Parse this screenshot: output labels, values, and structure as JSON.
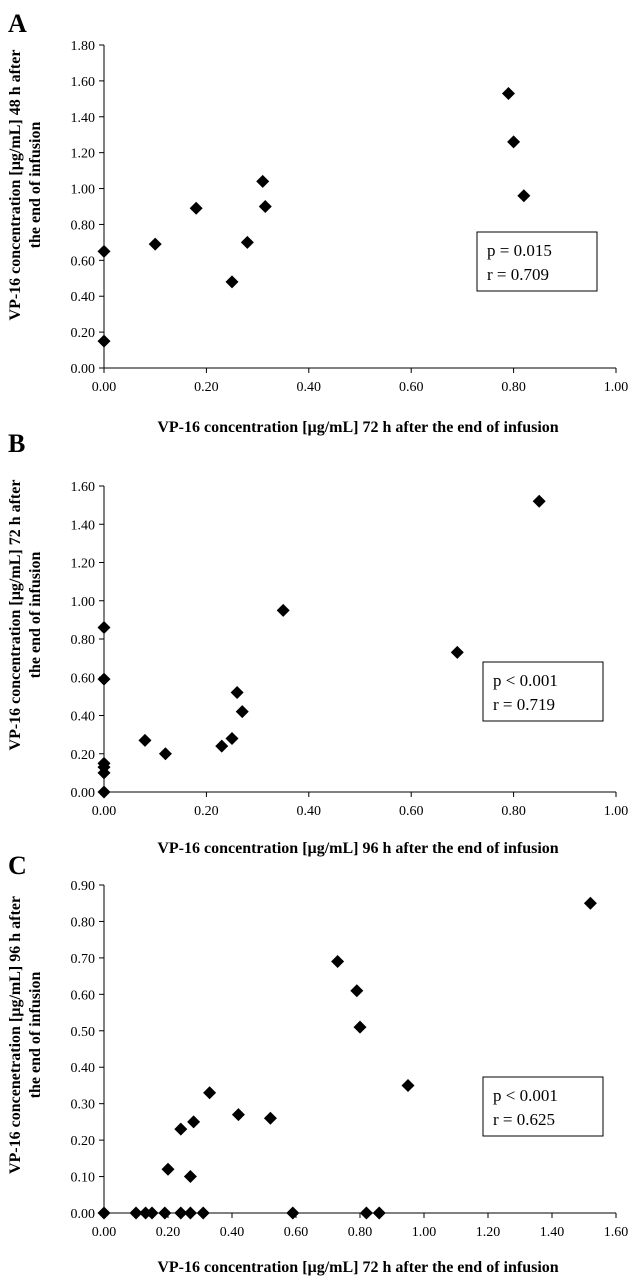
{
  "chart_data": [
    {
      "type": "scatter",
      "panel": "A",
      "xlabel": "VP-16 concentration [µg/mL] 72 h after the end of infusion",
      "ylabel_lines": [
        "VP-16 concentration [µg/mL] 48 h after",
        "the end of infusion"
      ],
      "xlim": [
        0,
        1.0
      ],
      "ylim": [
        0,
        1.8
      ],
      "xticks": [
        "0.00",
        "0.20",
        "0.40",
        "0.60",
        "0.80",
        "1.00"
      ],
      "yticks": [
        "0.00",
        "0.20",
        "0.40",
        "0.60",
        "0.80",
        "1.00",
        "1.20",
        "1.40",
        "1.60",
        "1.80"
      ],
      "stat_lines": [
        "p = 0.015",
        "r = 0.709"
      ],
      "marker": "diamond",
      "points": [
        {
          "x": 0.0,
          "y": 0.15
        },
        {
          "x": 0.0,
          "y": 0.65
        },
        {
          "x": 0.1,
          "y": 0.69
        },
        {
          "x": 0.18,
          "y": 0.89
        },
        {
          "x": 0.25,
          "y": 0.48
        },
        {
          "x": 0.28,
          "y": 0.7
        },
        {
          "x": 0.31,
          "y": 1.04
        },
        {
          "x": 0.315,
          "y": 0.9
        },
        {
          "x": 0.79,
          "y": 1.53
        },
        {
          "x": 0.8,
          "y": 1.26
        },
        {
          "x": 0.82,
          "y": 0.96
        }
      ]
    },
    {
      "type": "scatter",
      "panel": "B",
      "xlabel": "VP-16 concentration [µg/mL] 96 h after the end of infusion",
      "ylabel_lines": [
        "VP-16 concentration [µg/mL] 72 h after",
        "the end of infusion"
      ],
      "xlim": [
        0,
        1.0
      ],
      "ylim": [
        0,
        1.6
      ],
      "xticks": [
        "0.00",
        "0.20",
        "0.40",
        "0.60",
        "0.80",
        "1.00"
      ],
      "yticks": [
        "0.00",
        "0.20",
        "0.40",
        "0.60",
        "0.80",
        "1.00",
        "1.20",
        "1.40",
        "1.60"
      ],
      "stat_lines": [
        "p < 0.001",
        "r = 0.719"
      ],
      "marker": "diamond",
      "points": [
        {
          "x": 0.0,
          "y": 0.0
        },
        {
          "x": 0.0,
          "y": 0.1
        },
        {
          "x": 0.0,
          "y": 0.13
        },
        {
          "x": 0.0,
          "y": 0.15
        },
        {
          "x": 0.0,
          "y": 0.59
        },
        {
          "x": 0.0,
          "y": 0.86
        },
        {
          "x": 0.08,
          "y": 0.27
        },
        {
          "x": 0.12,
          "y": 0.2
        },
        {
          "x": 0.23,
          "y": 0.24
        },
        {
          "x": 0.25,
          "y": 0.28
        },
        {
          "x": 0.26,
          "y": 0.52
        },
        {
          "x": 0.27,
          "y": 0.42
        },
        {
          "x": 0.35,
          "y": 0.95
        },
        {
          "x": 0.69,
          "y": 0.73
        },
        {
          "x": 0.85,
          "y": 1.52
        }
      ]
    },
    {
      "type": "scatter",
      "panel": "C",
      "xlabel": "VP-16 concentration [µg/mL] 72 h after the end of infusion",
      "ylabel_lines": [
        "VP-16 concenetration [µg/mL] 96 h after",
        "the end of infusion"
      ],
      "xlim": [
        0,
        1.6
      ],
      "ylim": [
        0,
        0.9
      ],
      "xticks": [
        "0.00",
        "0.20",
        "0.40",
        "0.60",
        "0.80",
        "1.00",
        "1.20",
        "1.40",
        "1.60"
      ],
      "yticks": [
        "0.00",
        "0.10",
        "0.20",
        "0.30",
        "0.40",
        "0.50",
        "0.60",
        "0.70",
        "0.80",
        "0.90"
      ],
      "stat_lines": [
        "p < 0.001",
        "r = 0.625"
      ],
      "marker": "diamond",
      "points": [
        {
          "x": 0.0,
          "y": 0.0
        },
        {
          "x": 0.1,
          "y": 0.0
        },
        {
          "x": 0.13,
          "y": 0.0
        },
        {
          "x": 0.15,
          "y": 0.0
        },
        {
          "x": 0.19,
          "y": 0.0
        },
        {
          "x": 0.24,
          "y": 0.0
        },
        {
          "x": 0.27,
          "y": 0.0
        },
        {
          "x": 0.31,
          "y": 0.0
        },
        {
          "x": 0.59,
          "y": 0.0
        },
        {
          "x": 0.82,
          "y": 0.0
        },
        {
          "x": 0.86,
          "y": 0.0
        },
        {
          "x": 0.2,
          "y": 0.12
        },
        {
          "x": 0.24,
          "y": 0.23
        },
        {
          "x": 0.27,
          "y": 0.1
        },
        {
          "x": 0.28,
          "y": 0.25
        },
        {
          "x": 0.33,
          "y": 0.33
        },
        {
          "x": 0.42,
          "y": 0.27
        },
        {
          "x": 0.52,
          "y": 0.26
        },
        {
          "x": 0.73,
          "y": 0.69
        },
        {
          "x": 0.79,
          "y": 0.61
        },
        {
          "x": 0.8,
          "y": 0.51
        },
        {
          "x": 0.95,
          "y": 0.35
        },
        {
          "x": 1.52,
          "y": 0.85
        }
      ]
    }
  ]
}
